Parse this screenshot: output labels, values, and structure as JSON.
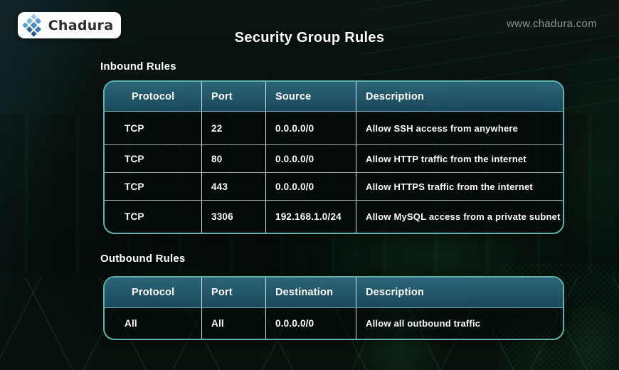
{
  "brand": {
    "name": "Chadura",
    "logo_icon": "diamond-grid-icon"
  },
  "header": {
    "title": "Security Group Rules",
    "website": "www.chadura.com"
  },
  "inbound": {
    "label": "Inbound Rules",
    "columns": [
      "Protocol",
      "Port",
      "Source",
      "Description"
    ],
    "rows": [
      [
        "TCP",
        "22",
        "0.0.0.0/0",
        "Allow SSH access from anywhere"
      ],
      [
        "TCP",
        "80",
        "0.0.0.0/0",
        "Allow HTTP traffic from the internet"
      ],
      [
        "TCP",
        "443",
        "0.0.0.0/0",
        "Allow HTTPS traffic from the internet"
      ],
      [
        "TCP",
        "3306",
        "192.168.1.0/24",
        "Allow MySQL access from a private subnet"
      ]
    ]
  },
  "outbound": {
    "label": "Outbound Rules",
    "columns": [
      "Protocol",
      "Port",
      "Destination",
      "Description"
    ],
    "rows": [
      [
        "All",
        "All",
        "0.0.0.0/0",
        "Allow all outbound traffic"
      ]
    ]
  },
  "colors": {
    "table_border_accent": "#5fb3ae",
    "table_header_bg": "#235a6e",
    "row_bg": "#04090b",
    "text": "#ffffff",
    "url_text": "#8e9392",
    "logo_text": "#2d2d2d",
    "logo_blues": [
      "#9ec5e2",
      "#5d9bcb",
      "#7fb3d9",
      "#4d8cc0",
      "#3c78ab",
      "#49a5c9",
      "#2f6a9b",
      "#275a86"
    ]
  }
}
